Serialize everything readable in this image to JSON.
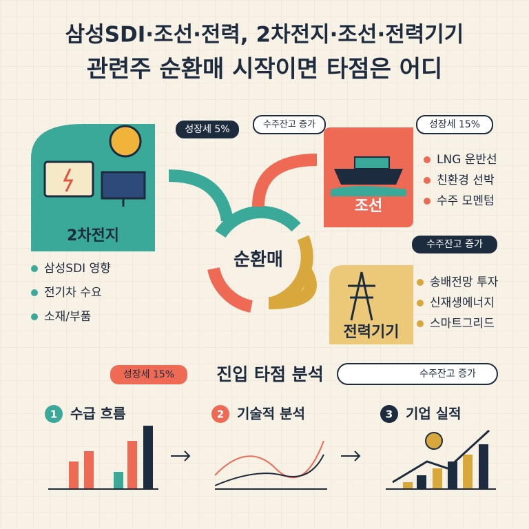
{
  "header": {
    "line1": "삼성SDI·조선·전력, 2차전지·조선·전력기기",
    "line2": "관련주 순환매 시작이면 타점은 어디"
  },
  "center": "순환매",
  "bubbles": {
    "battery_growth": "성장세 5%",
    "top_backlog": "수주잔고 증가",
    "ship_growth": "성장세 15%",
    "power_backlog": "수주잔고 증가",
    "entry_growth": "성장세 15%",
    "entry_backlog": "수주잔고 증가"
  },
  "sectors": [
    {
      "label": "2차전지",
      "items": [
        "삼성SDI 영향",
        "전기차 수요",
        "소재/부품"
      ]
    },
    {
      "label": "조선",
      "items": [
        "LNG 운반선",
        "친환경 선박",
        "수주 모멘텀"
      ]
    },
    {
      "label": "전력기기",
      "items": [
        "송배전망 투자",
        "신재생에너지",
        "스마트그리드"
      ]
    }
  ],
  "entry": {
    "title": "진입 타점 분석",
    "steps": [
      {
        "number": "1",
        "label": "수급 흐름"
      },
      {
        "number": "2",
        "label": "기술적 분석"
      },
      {
        "number": "3",
        "label": "기업 실적"
      }
    ]
  }
}
